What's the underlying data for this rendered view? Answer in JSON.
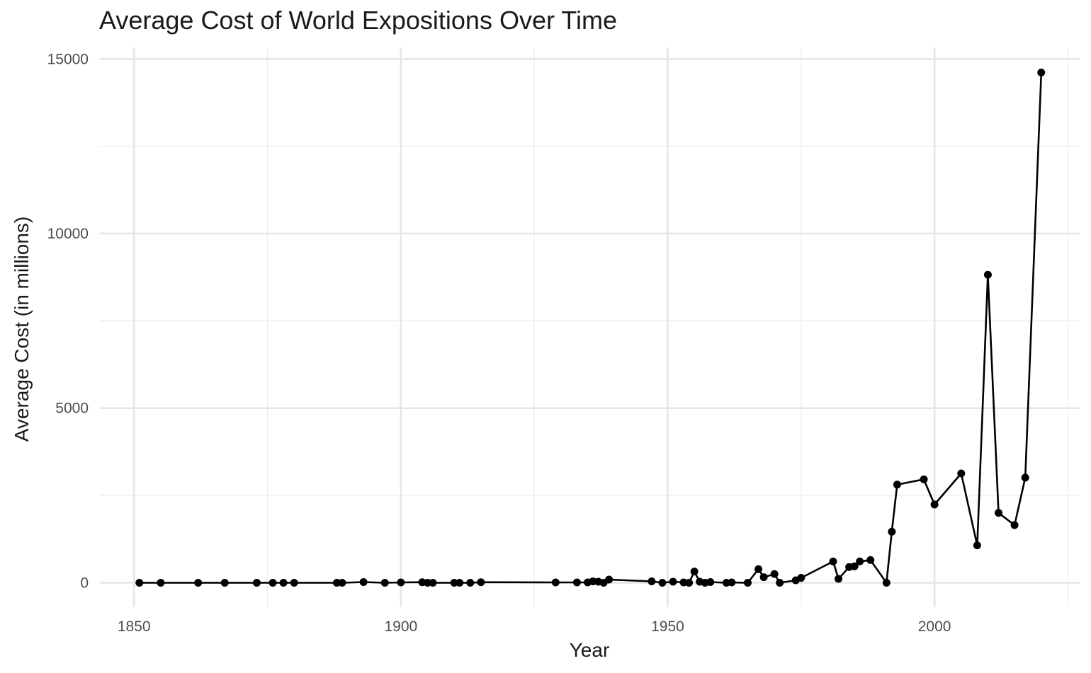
{
  "chart_data": {
    "type": "line",
    "title": "Average Cost of World Expositions Over Time",
    "xlabel": "Year",
    "ylabel": "Average Cost (in millions)",
    "xlim": [
      1843.6,
      2027.2
    ],
    "ylim": [
      -700,
      15330
    ],
    "x_ticks": [
      "1850",
      "1900",
      "1950",
      "2000"
    ],
    "y_ticks": [
      "0",
      "5000",
      "10000",
      "15000"
    ],
    "grid": true,
    "legend": "none",
    "series": [
      {
        "color": "#000000",
        "points": [
          [
            1851,
            0
          ],
          [
            1855,
            0
          ],
          [
            1862,
            0
          ],
          [
            1867,
            0
          ],
          [
            1873,
            0
          ],
          [
            1876,
            0
          ],
          [
            1878,
            0
          ],
          [
            1880,
            0
          ],
          [
            1888,
            0
          ],
          [
            1889,
            0
          ],
          [
            1893,
            20
          ],
          [
            1897,
            0
          ],
          [
            1900,
            10
          ],
          [
            1904,
            15
          ],
          [
            1905,
            0
          ],
          [
            1906,
            0
          ],
          [
            1910,
            0
          ],
          [
            1911,
            0
          ],
          [
            1913,
            0
          ],
          [
            1915,
            15
          ],
          [
            1929,
            10
          ],
          [
            1933,
            10
          ],
          [
            1935,
            10
          ],
          [
            1936,
            40
          ],
          [
            1937,
            30
          ],
          [
            1938,
            0
          ],
          [
            1939,
            90
          ],
          [
            1947,
            40
          ],
          [
            1949,
            0
          ],
          [
            1951,
            30
          ],
          [
            1953,
            10
          ],
          [
            1954,
            0
          ],
          [
            1955,
            320
          ],
          [
            1956,
            30
          ],
          [
            1957,
            0
          ],
          [
            1958,
            20
          ],
          [
            1961,
            0
          ],
          [
            1962,
            10
          ],
          [
            1965,
            0
          ],
          [
            1967,
            390
          ],
          [
            1968,
            160
          ],
          [
            1970,
            250
          ],
          [
            1971,
            0
          ],
          [
            1974,
            70
          ],
          [
            1975,
            140
          ],
          [
            1981,
            610
          ],
          [
            1982,
            110
          ],
          [
            1984,
            450
          ],
          [
            1985,
            470
          ],
          [
            1986,
            610
          ],
          [
            1988,
            650
          ],
          [
            1991,
            0
          ],
          [
            1992,
            1460
          ],
          [
            1993,
            2810
          ],
          [
            1998,
            2960
          ],
          [
            2000,
            2240
          ],
          [
            2005,
            3130
          ],
          [
            2008,
            1070
          ],
          [
            2010,
            8820
          ],
          [
            2012,
            2000
          ],
          [
            2015,
            1650
          ],
          [
            2017,
            3010
          ],
          [
            2020,
            14610
          ]
        ]
      }
    ]
  }
}
